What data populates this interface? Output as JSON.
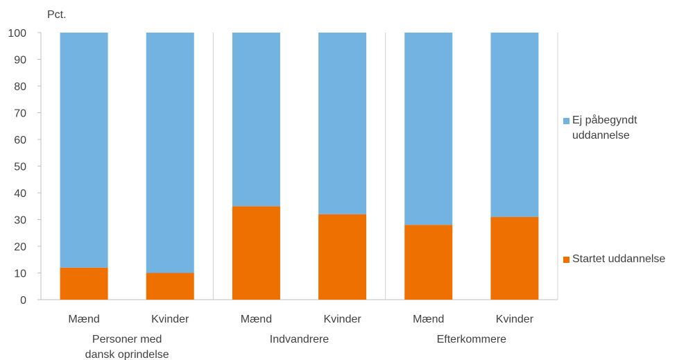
{
  "chart_data": {
    "type": "bar",
    "stacked": true,
    "unit_label": "Pct.",
    "ylim": [
      0,
      100
    ],
    "yticks": [
      0,
      10,
      20,
      30,
      40,
      50,
      60,
      70,
      80,
      90,
      100
    ],
    "categories": [
      "Mænd",
      "Kvinder",
      "Mænd",
      "Kvinder",
      "Mænd",
      "Kvinder"
    ],
    "groups": [
      {
        "label": "Personer med dansk oprindelse",
        "label_lines": [
          "Personer med",
          "dansk oprindelse"
        ]
      },
      {
        "label": "Indvandrere",
        "label_lines": [
          "Indvandrere"
        ]
      },
      {
        "label": "Efterkommere",
        "label_lines": [
          "Efterkommere"
        ]
      }
    ],
    "series": [
      {
        "name": "Startet uddannelse",
        "color": "#ED7000",
        "values": [
          12,
          10,
          35,
          32,
          28,
          31
        ]
      },
      {
        "name": "Ej påbegyndt uddannelse",
        "color": "#72B3E2",
        "values": [
          88,
          90,
          65,
          68,
          72,
          69
        ]
      }
    ],
    "legend": {
      "placement": "right",
      "items": [
        {
          "lines": [
            "Ej påbegyndt",
            "uddannelse"
          ],
          "color": "#72B3E2"
        },
        {
          "lines": [
            "Startet uddannelse"
          ],
          "color": "#ED7000"
        }
      ]
    },
    "grid": false,
    "group_separators": true
  }
}
